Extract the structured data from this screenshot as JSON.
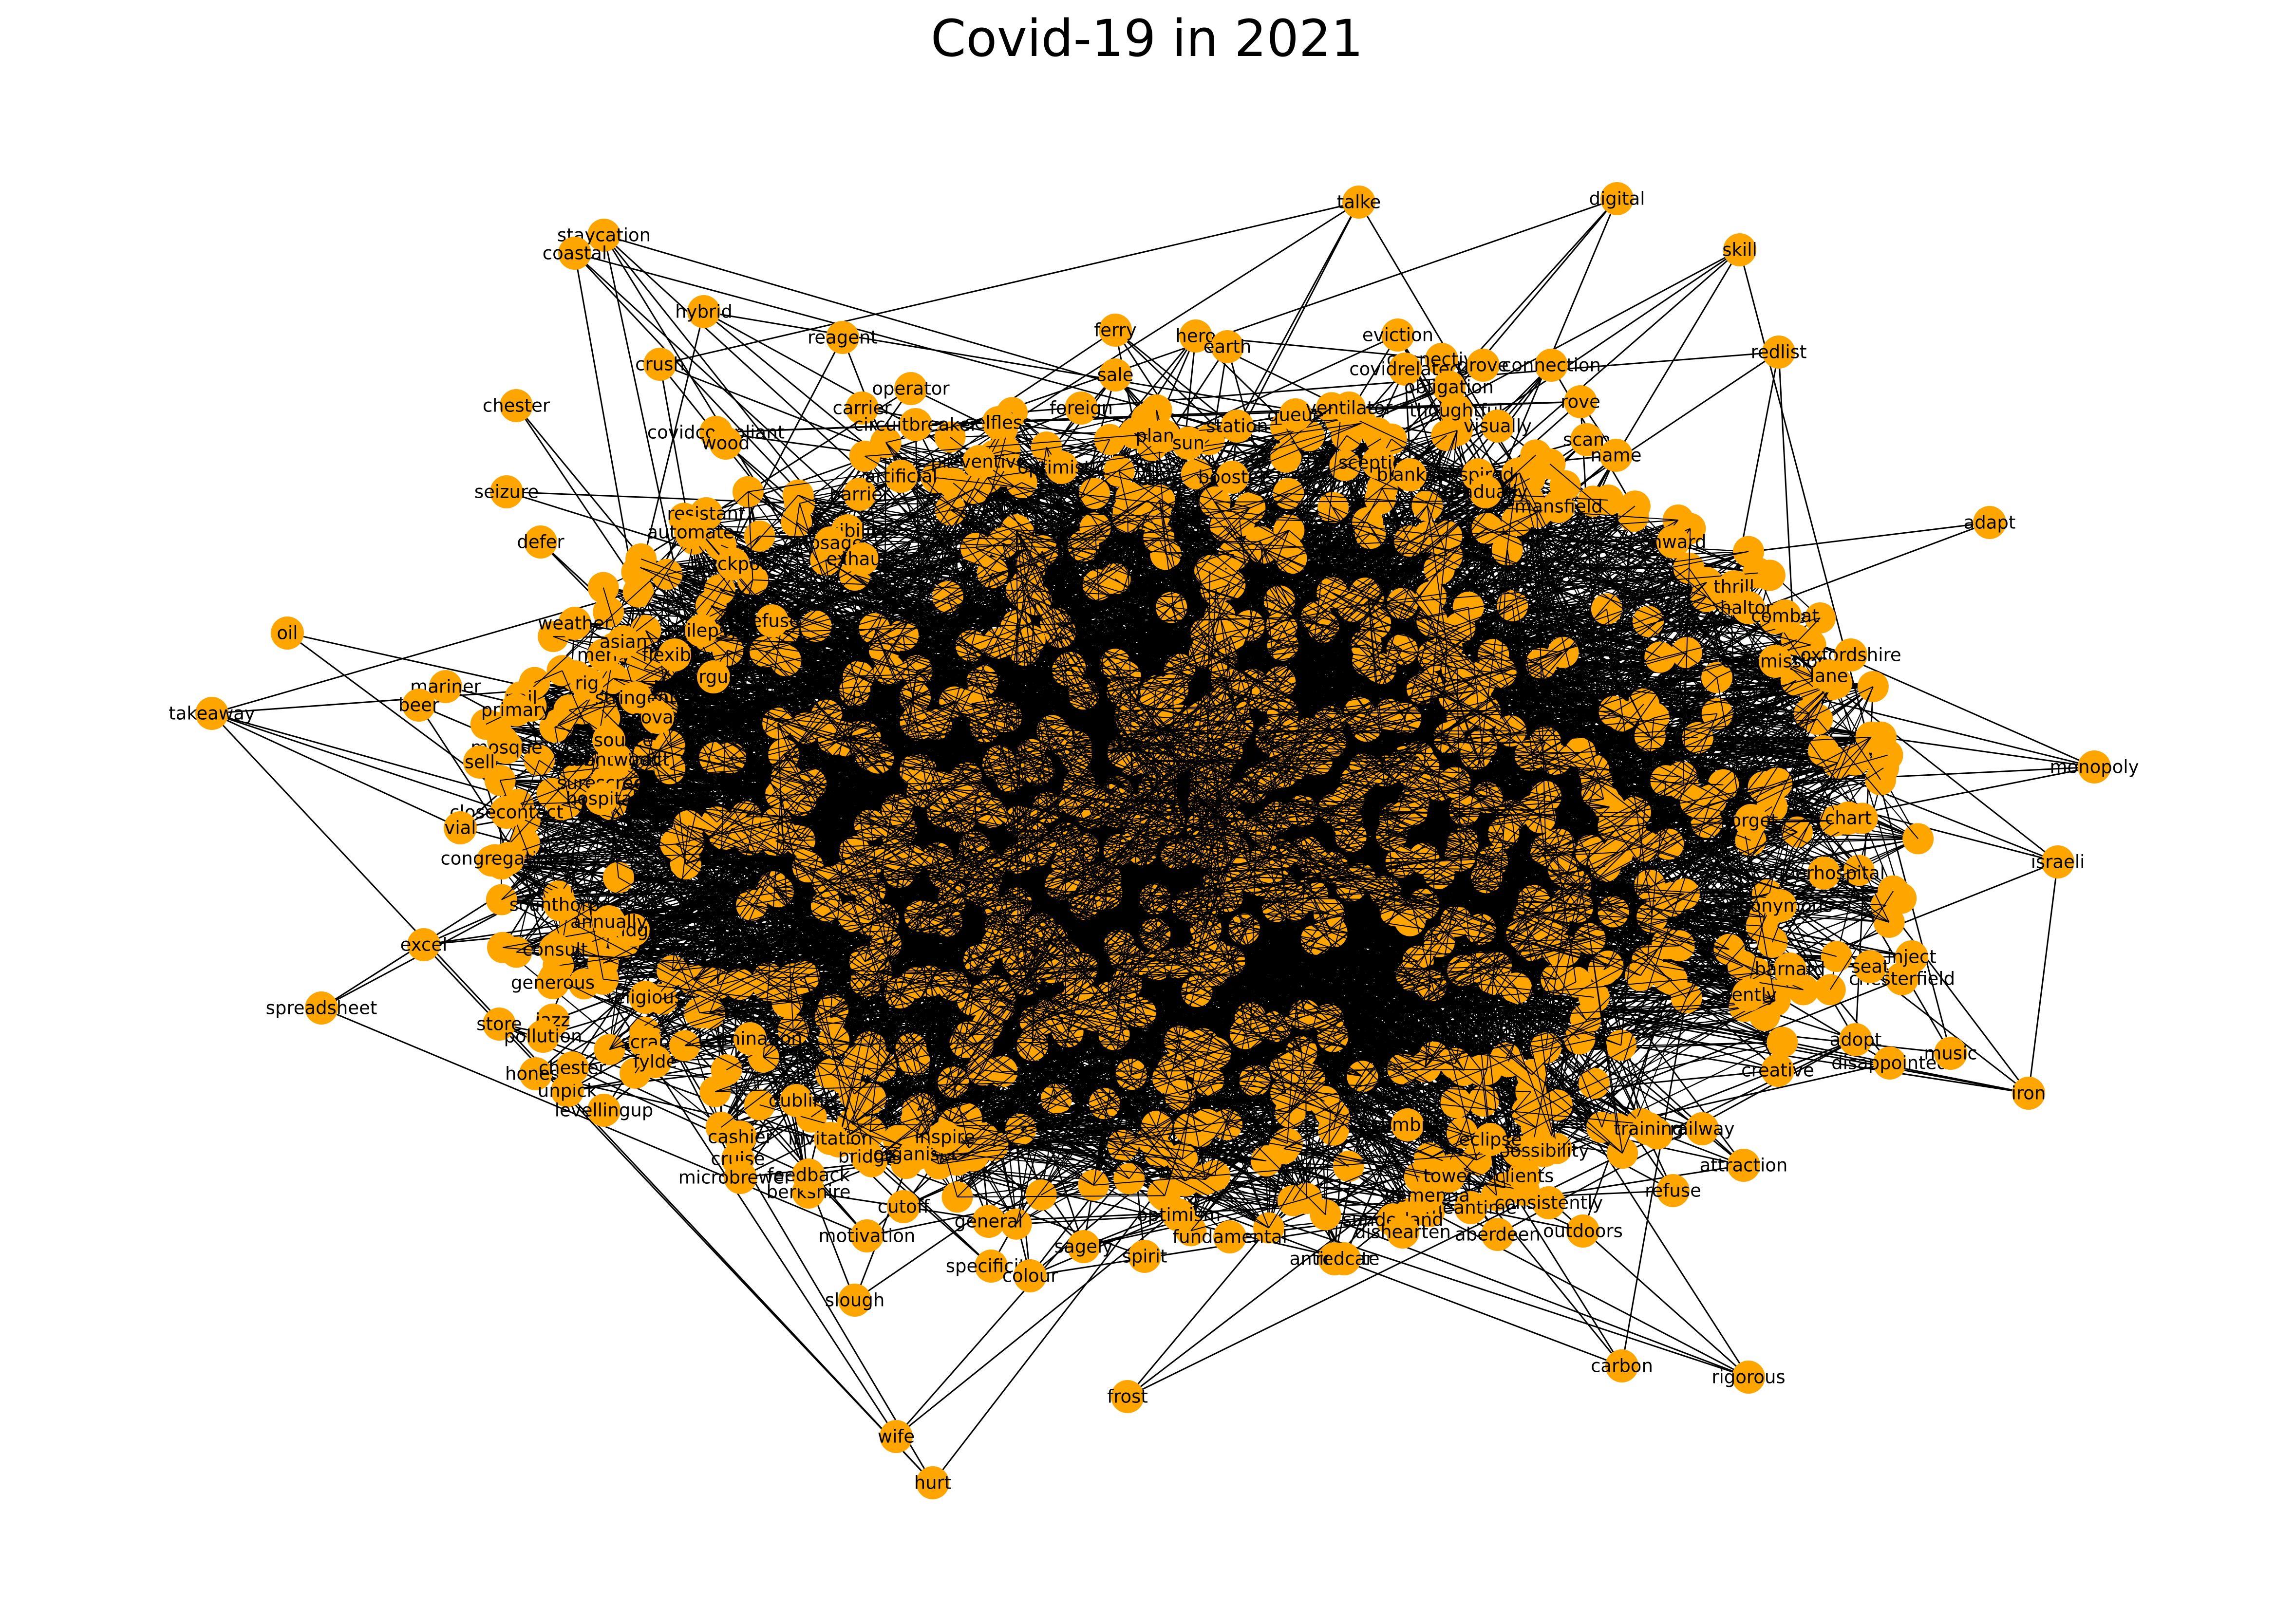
{
  "title": "Covid-19 in 2021",
  "colors": {
    "node": "#FFA500",
    "edge": "#000000",
    "label": "#000000",
    "background": "#FFFFFF"
  },
  "graph": {
    "nodes": [
      "talke",
      "digital",
      "skill",
      "staycation",
      "coastal",
      "hybrid",
      "reagent",
      "ferry",
      "hero",
      "earth",
      "eviction",
      "connectivity",
      "covidrelated",
      "grove",
      "connection",
      "redlist",
      "sale",
      "crush",
      "operator",
      "chester",
      "covidcompliant",
      "wood",
      "carrier",
      "circuitbreaker",
      "selfless",
      "foreign",
      "planet",
      "sun",
      "station",
      "queue",
      "ventilator",
      "obligation",
      "thoughtful",
      "rove",
      "visually",
      "scam",
      "name",
      "seizure",
      "resistant",
      "automate",
      "barrier",
      "artificial",
      "eligibility",
      "dosage",
      "preventive",
      "optimistic",
      "booster",
      "sceptical",
      "blanket",
      "inspired",
      "gradually",
      "mansfield",
      "defer",
      "blackpool",
      "exhaust",
      "onward",
      "adapt",
      "weather",
      "refuse",
      "epilepsy",
      "merry",
      "asian",
      "flexible",
      "argue",
      "oil",
      "mariner",
      "beer",
      "takeaway",
      "nail",
      "primary",
      "rig",
      "stringent",
      "covax",
      "mosque",
      "sell",
      "subcontract",
      "surescreen",
      "thrill",
      "halton",
      "combat",
      "commission",
      "oxfordshire",
      "lane",
      "monopoly",
      "chart",
      "israeli",
      "closecontact",
      "vial",
      "congregational",
      "scunthorpe",
      "excel",
      "spreadsheet",
      "fridge",
      "annually",
      "generous",
      "consult",
      "store",
      "jazz",
      "pollution",
      "honest",
      "unpick",
      "levellingup",
      "chester",
      "religious",
      "scrap",
      "fylde",
      "termination",
      "dublin",
      "cashier",
      "cruise",
      "microbrewery",
      "berkshire",
      "feedback",
      "bridge",
      "invitation",
      "organiser",
      "inspire",
      "cutoff",
      "motivation",
      "slough",
      "specificity",
      "wife",
      "hurt",
      "spirit",
      "frost",
      "optimism",
      "fundamental",
      "anticipate",
      "general",
      "sagely",
      "colour",
      "sunderland",
      "aberdeen",
      "outdoors",
      "possibility",
      "meantime",
      "carbon",
      "rigorous",
      "attraction",
      "refuse",
      "railway",
      "training",
      "creative",
      "chesterfield",
      "adopt",
      "disappointed",
      "music",
      "iron",
      "inject",
      "seat",
      "barnard",
      "gently",
      "superhospital",
      "forget",
      "anonymous",
      "redcar",
      "dementia",
      "dishearten",
      "consistently",
      "cumbria",
      "tower",
      "eclipse",
      "clients",
      "hospital",
      "brentwood",
      "outsource"
    ],
    "edge_count_note": ""
  }
}
